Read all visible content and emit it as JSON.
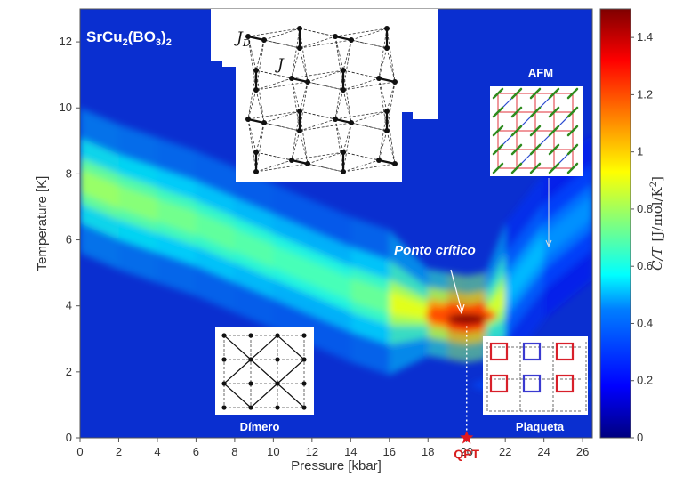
{
  "chart_data": {
    "type": "heatmap",
    "title": "",
    "material_label": {
      "base": "SrCu",
      "sub1": "2",
      "mid": "(BO",
      "sub2": "3",
      "end": ")",
      "sub3": "2"
    },
    "xlabel": "Pressure [kbar]",
    "ylabel": "Temperature [K]",
    "xlim": [
      0,
      26.5
    ],
    "ylim": [
      0,
      13
    ],
    "xticks": [
      0,
      2,
      4,
      6,
      8,
      10,
      12,
      14,
      16,
      18,
      20,
      22,
      24,
      26
    ],
    "yticks": [
      0,
      2,
      4,
      6,
      8,
      10,
      12
    ],
    "colorbar": {
      "label_pre": "C/T",
      "label_unit": "[J/mol/K",
      "label_sup": "2",
      "label_end": "]",
      "min": 0,
      "max": 1.5,
      "ticks": [
        0,
        0.2,
        0.4,
        0.6,
        0.8,
        1.0,
        1.2,
        1.4
      ],
      "tick_labels": [
        "0",
        "0.2",
        "0.4",
        "0.6",
        "0.8",
        "1",
        "1.2",
        "1.4"
      ],
      "colormap": "jet"
    },
    "ridge": [
      {
        "p": 0,
        "t": 7.8,
        "v": 0.8
      },
      {
        "p": 2,
        "t": 7.3,
        "v": 0.78
      },
      {
        "p": 4,
        "t": 6.9,
        "v": 0.75
      },
      {
        "p": 6,
        "t": 6.5,
        "v": 0.72
      },
      {
        "p": 8,
        "t": 6.0,
        "v": 0.7
      },
      {
        "p": 10,
        "t": 5.5,
        "v": 0.68
      },
      {
        "p": 12,
        "t": 5.0,
        "v": 0.66
      },
      {
        "p": 14,
        "t": 4.5,
        "v": 0.68
      },
      {
        "p": 16,
        "t": 4.1,
        "v": 0.75
      },
      {
        "p": 18,
        "t": 3.8,
        "v": 1.05
      },
      {
        "p": 19,
        "t": 3.7,
        "v": 1.3
      },
      {
        "p": 20,
        "t": 3.6,
        "v": 1.5
      },
      {
        "p": 21,
        "t": 3.7,
        "v": 1.25
      },
      {
        "p": 22,
        "t": 4.3,
        "v": 0.5
      },
      {
        "p": 24,
        "t": 5.8,
        "v": 0.42
      },
      {
        "p": 26.5,
        "t": 7.0,
        "v": 0.38
      }
    ],
    "annotations": {
      "critical_point": {
        "text": "Ponto crítico",
        "p": 20.0,
        "t": 3.6
      },
      "qpt": {
        "text": "QPT",
        "p": 20.0,
        "t": 0
      },
      "afm": {
        "text": "AFM"
      },
      "dimer": {
        "text": "Dímero"
      },
      "plaquette": {
        "text": "Plaqueta"
      },
      "lattice_jd": "J",
      "lattice_jd_sub": "D",
      "lattice_j": "J"
    },
    "colors": {
      "ridge_peak": "#8b0000",
      "qpt_star": "#e0181f",
      "qpt_text": "#d81e1e",
      "afm_bond_red": "#e0303a",
      "afm_bond_blue": "#2a4bd0",
      "afm_spin": "#2e8b1e",
      "plaquette_red": "#d8202a",
      "plaquette_blue": "#3a3ad0"
    }
  }
}
